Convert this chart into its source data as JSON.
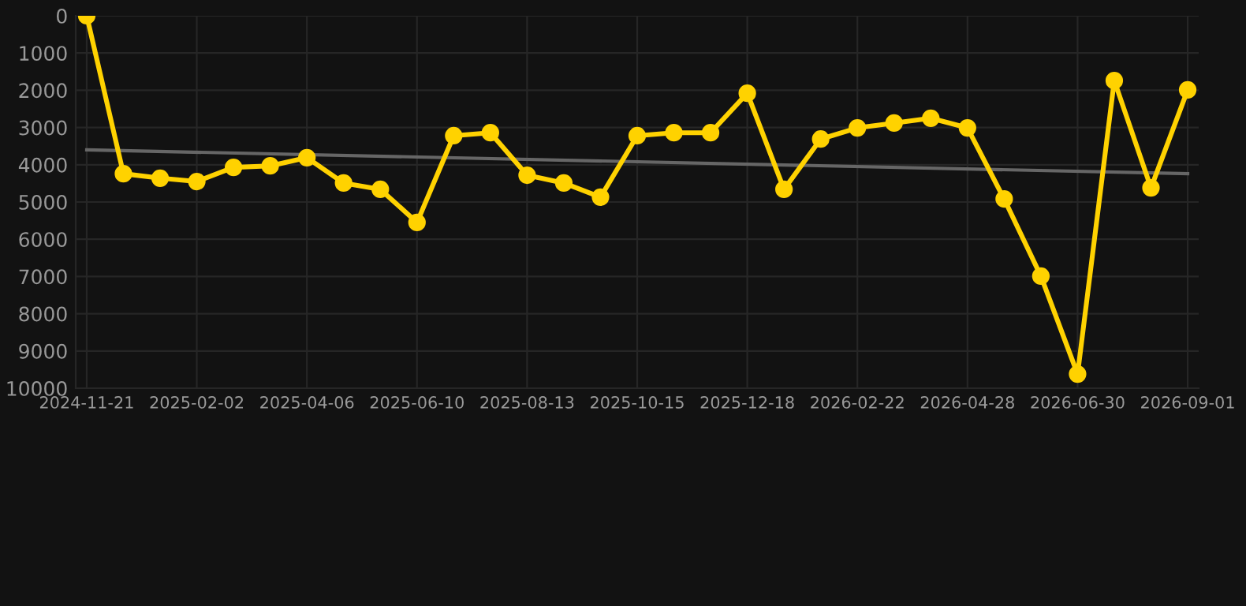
{
  "chart_data": {
    "type": "line",
    "categories": [
      "2024-11-21",
      null,
      null,
      "2025-02-02",
      null,
      null,
      "2025-04-06",
      null,
      null,
      "2025-06-10",
      null,
      null,
      "2025-08-13",
      null,
      null,
      "2025-10-15",
      null,
      null,
      "2025-12-18",
      null,
      null,
      "2026-02-22",
      null,
      null,
      "2026-04-28",
      null,
      null,
      "2026-06-30",
      null,
      null,
      "2026-09-01"
    ],
    "series": [
      {
        "color": "#ffd200",
        "marker": "circle",
        "values": [
          0,
          4240,
          4360,
          4450,
          4070,
          4030,
          3810,
          4490,
          4660,
          5550,
          3220,
          3140,
          4280,
          4490,
          4870,
          3220,
          3140,
          3140,
          2080,
          4660,
          3310,
          3010,
          2880,
          2750,
          3010,
          4920,
          6990,
          9620,
          1740,
          4620,
          1990
        ]
      },
      {
        "color": "#666666",
        "marker": "none",
        "values": [
          3600,
          null,
          null,
          null,
          null,
          null,
          null,
          null,
          null,
          null,
          null,
          null,
          null,
          null,
          null,
          null,
          null,
          null,
          null,
          null,
          null,
          null,
          null,
          null,
          null,
          null,
          null,
          null,
          null,
          null,
          4240
        ]
      }
    ],
    "ylim": [
      10000,
      0
    ],
    "yticks": [
      0,
      1000,
      2000,
      3000,
      4000,
      5000,
      6000,
      7000,
      8000,
      9000,
      10000
    ],
    "grid": true,
    "line_style": "solid"
  }
}
